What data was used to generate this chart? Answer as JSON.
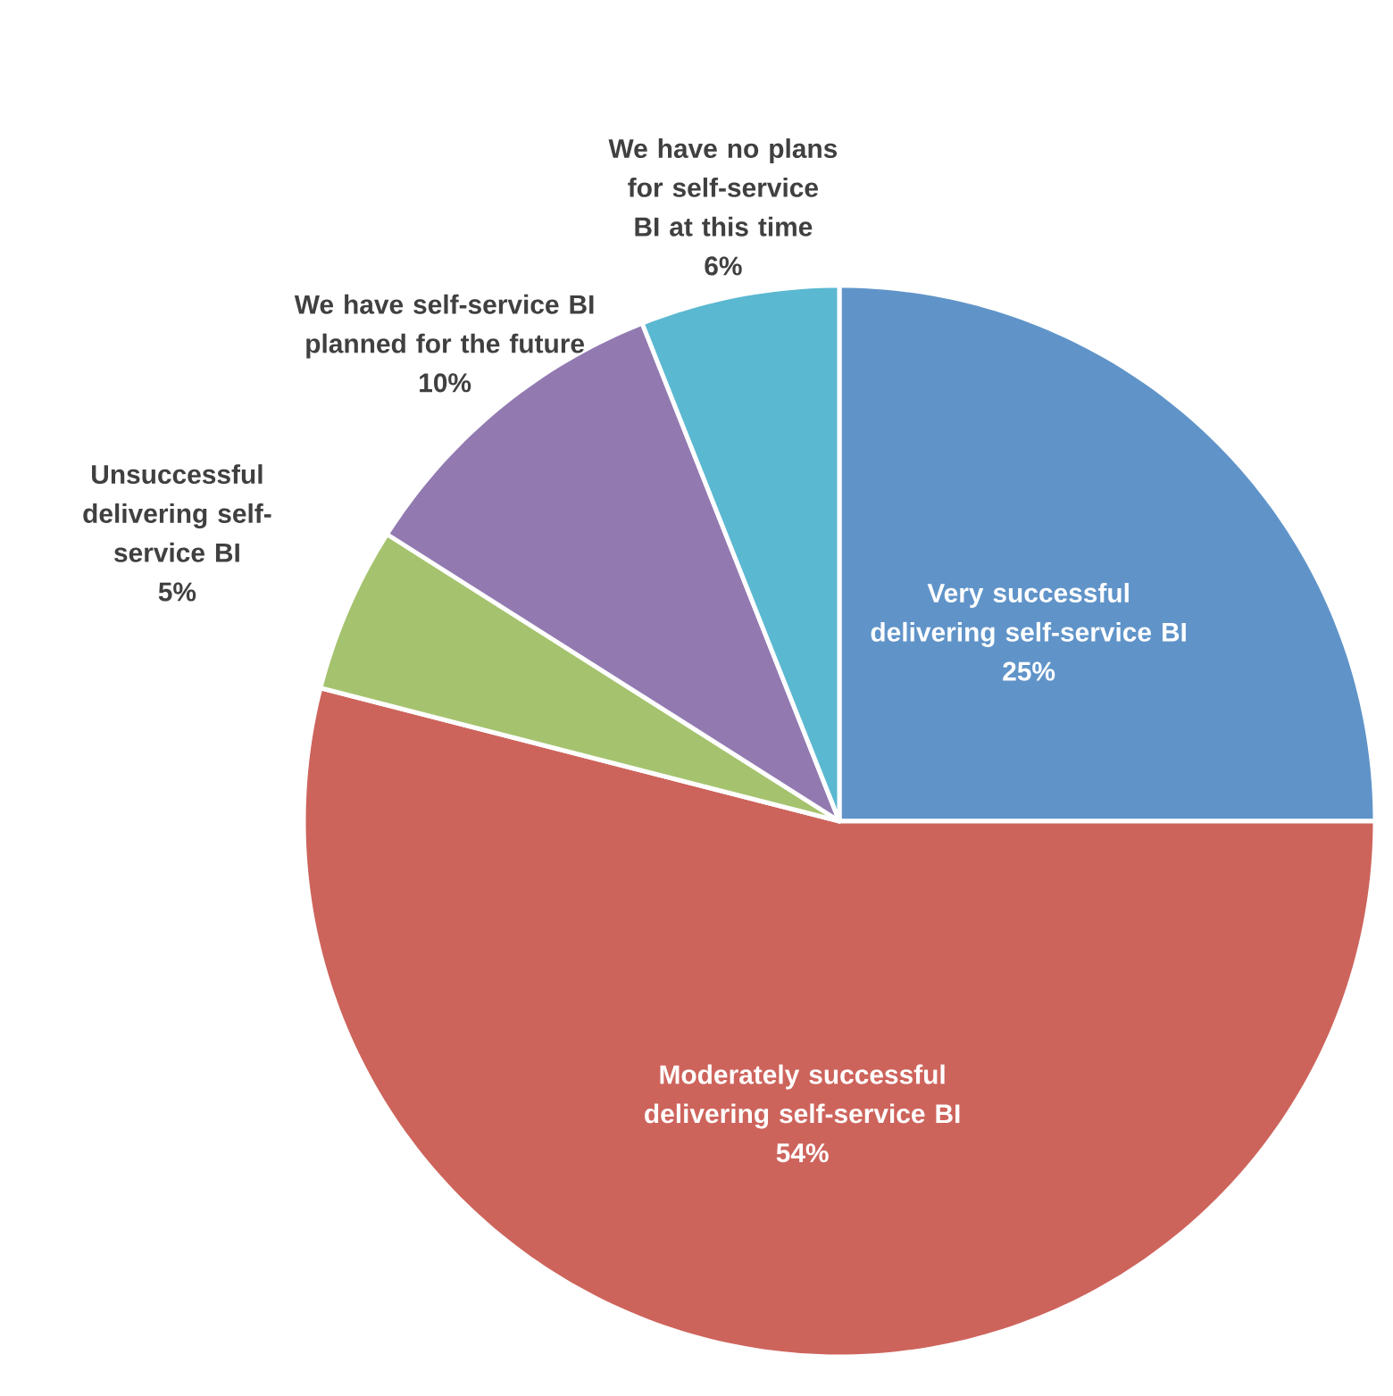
{
  "chart_data": {
    "type": "pie",
    "categories": [
      "Very successful delivering self-service BI",
      "Moderately successful delivering self-service BI",
      "Unsuccessful delivering self-service BI",
      "We have self-service BI planned for the future",
      "We have no plans for self-service BI at this time"
    ],
    "values": [
      25,
      54,
      5,
      10,
      6
    ],
    "value_labels": [
      "25%",
      "54%",
      "5%",
      "10%",
      "6%"
    ],
    "colors": [
      "#6094c9",
      "#cd645c",
      "#a5c36e",
      "#927ab1",
      "#5bb8d1"
    ],
    "legend": false
  }
}
